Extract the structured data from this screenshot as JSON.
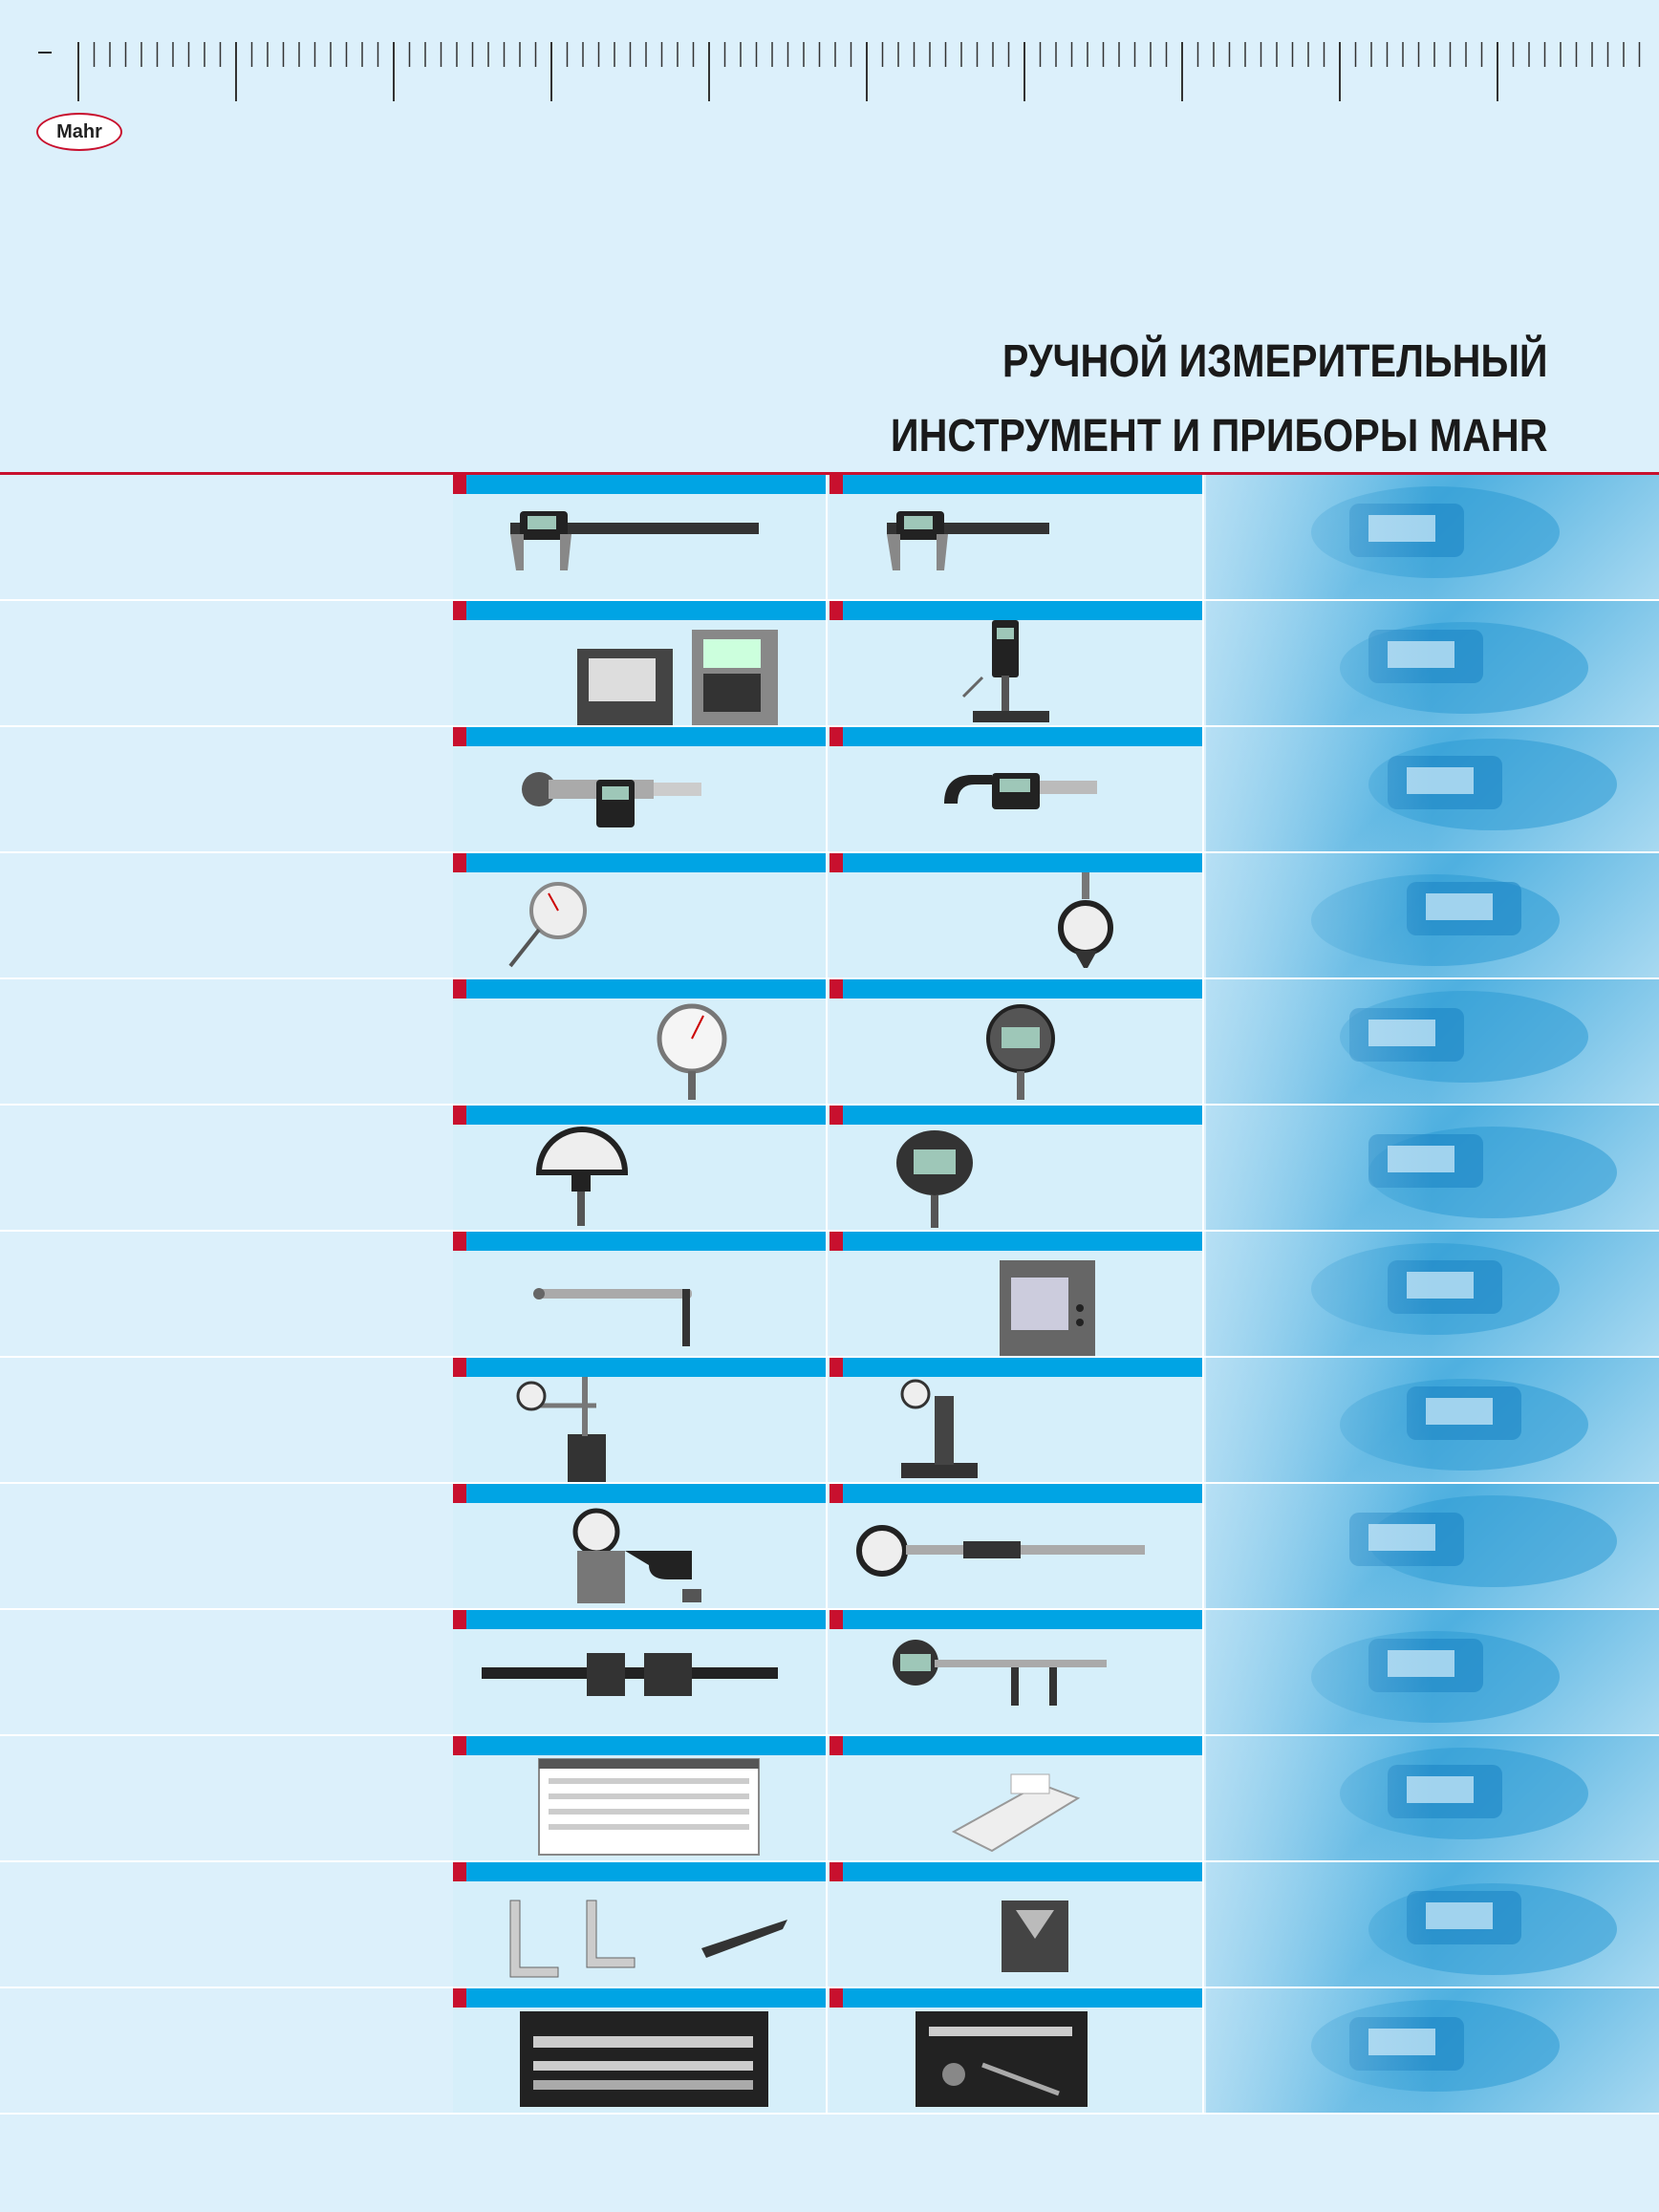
{
  "brand": {
    "logo_text": "Mahr"
  },
  "title": {
    "line1": "РУЧНОЙ ИЗМЕРИТЕЛЬНЫЙ",
    "line2": "ИНСТРУМЕНТ И ПРИБОРЫ MAHR"
  },
  "colors": {
    "background": "#dcf0fb",
    "accent_red": "#c8102e",
    "accent_blue": "#00a4e4",
    "cell": "#d6effa"
  },
  "rows": [
    {
      "left_icon": "digital-caliper-large-icon",
      "right_icon": "digital-caliper-icon",
      "photo_icon": "caliper-closeup-photo"
    },
    {
      "left_icon": "gauge-computer-setup-icon",
      "right_icon": "height-gauge-icon",
      "photo_icon": "keypad-closeup-photo"
    },
    {
      "left_icon": "internal-micrometer-icon",
      "right_icon": "digital-micrometer-icon",
      "photo_icon": "micrometer-closeup-photo"
    },
    {
      "left_icon": "dial-test-indicator-icon",
      "right_icon": "bore-dial-indicator-icon",
      "photo_icon": "dial-closeup-photo"
    },
    {
      "left_icon": "dial-indicator-icon",
      "right_icon": "digital-indicator-icon",
      "photo_icon": "digital-display-closeup-photo"
    },
    {
      "left_icon": "comparator-icon",
      "right_icon": "digital-comparator-icon",
      "photo_icon": "comparator-closeup-photo"
    },
    {
      "left_icon": "inductive-probe-icon",
      "right_icon": "electronic-amplifier-icon",
      "photo_icon": "probe-closeup-photo"
    },
    {
      "left_icon": "magnetic-stand-icon",
      "right_icon": "indicator-stand-icon",
      "photo_icon": "stand-closeup-photo"
    },
    {
      "left_icon": "snap-gauge-icon",
      "right_icon": "bore-gauge-icon",
      "photo_icon": "gear-tester-closeup-photo"
    },
    {
      "left_icon": "long-caliper-icon",
      "right_icon": "inside-measuring-instrument-icon",
      "photo_icon": "measuring-head-closeup-photo"
    },
    {
      "left_icon": "software-screen-icon",
      "right_icon": "data-printer-icon",
      "photo_icon": "printer-closeup-photo"
    },
    {
      "left_icon": "squares-rulers-icon",
      "right_icon": "v-block-icon",
      "photo_icon": "v-block-closeup-photo"
    },
    {
      "left_icon": "gauge-block-set-icon",
      "right_icon": "tool-case-icon",
      "photo_icon": "gauge-blocks-closeup-photo"
    }
  ]
}
